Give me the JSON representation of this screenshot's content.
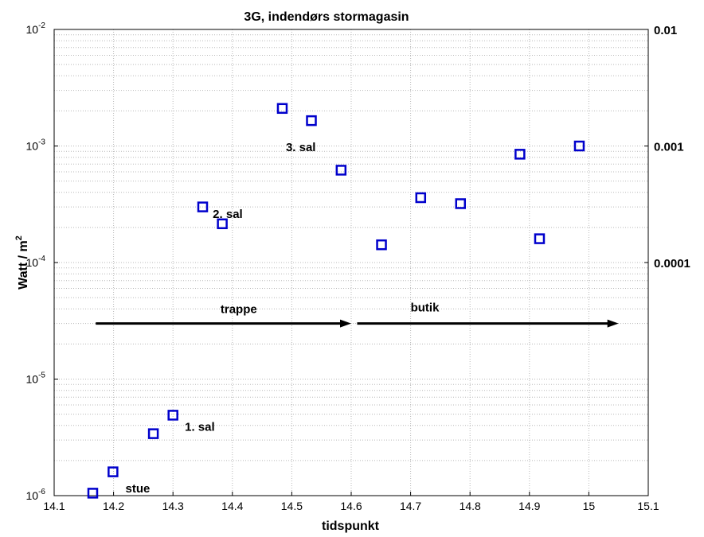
{
  "chart_data": {
    "type": "scatter",
    "title": "3G, indendørs stormagasin",
    "xlabel": "tidspunkt",
    "ylabel": "Watt / m",
    "ylabel_superscript": "2",
    "xlim": [
      14.1,
      15.1
    ],
    "ylim": [
      1e-06,
      0.01
    ],
    "yscale": "log",
    "grid": true,
    "x_ticks": [
      "14.1",
      "14.2",
      "14.3",
      "14.4",
      "14.5",
      "14.6",
      "14.7",
      "14.8",
      "14.9",
      "15",
      "15.1"
    ],
    "y_ticks_left": [
      {
        "base": "10",
        "exp": "-6"
      },
      {
        "base": "10",
        "exp": "-5"
      },
      {
        "base": "10",
        "exp": "-4"
      },
      {
        "base": "10",
        "exp": "-3"
      },
      {
        "base": "10",
        "exp": "-2"
      }
    ],
    "y_ticks_right": [
      "0.0001",
      "0.001",
      "0.01"
    ],
    "marker_color": "#0000cc",
    "points": [
      {
        "x": 14.165,
        "y": 1.05e-06
      },
      {
        "x": 14.199,
        "y": 1.6e-06
      },
      {
        "x": 14.267,
        "y": 3.4e-06
      },
      {
        "x": 14.3,
        "y": 4.9e-06
      },
      {
        "x": 14.35,
        "y": 0.0003
      },
      {
        "x": 14.383,
        "y": 0.000215
      },
      {
        "x": 14.484,
        "y": 0.0021
      },
      {
        "x": 14.533,
        "y": 0.00165
      },
      {
        "x": 14.583,
        "y": 0.00062
      },
      {
        "x": 14.651,
        "y": 0.000142
      },
      {
        "x": 14.717,
        "y": 0.00036
      },
      {
        "x": 14.784,
        "y": 0.00032
      },
      {
        "x": 14.884,
        "y": 0.00085
      },
      {
        "x": 14.917,
        "y": 0.00016
      },
      {
        "x": 14.984,
        "y": 0.001
      }
    ],
    "annotations": [
      {
        "text": "stue",
        "x": 14.22,
        "y": 1.15e-06
      },
      {
        "text": "1. sal",
        "x": 14.32,
        "y": 3.9e-06
      },
      {
        "text": "2. sal",
        "x": 14.367,
        "y": 0.00026
      },
      {
        "text": "3. sal",
        "x": 14.49,
        "y": 0.00098
      },
      {
        "text": "trappe",
        "x": 14.38,
        "y": 4e-05
      },
      {
        "text": "butik",
        "x": 14.7,
        "y": 4.1e-05
      }
    ],
    "arrows": [
      {
        "x_start": 14.17,
        "x_end": 14.6,
        "y": 3e-05
      },
      {
        "x_start": 14.61,
        "x_end": 15.05,
        "y": 3e-05
      }
    ]
  }
}
